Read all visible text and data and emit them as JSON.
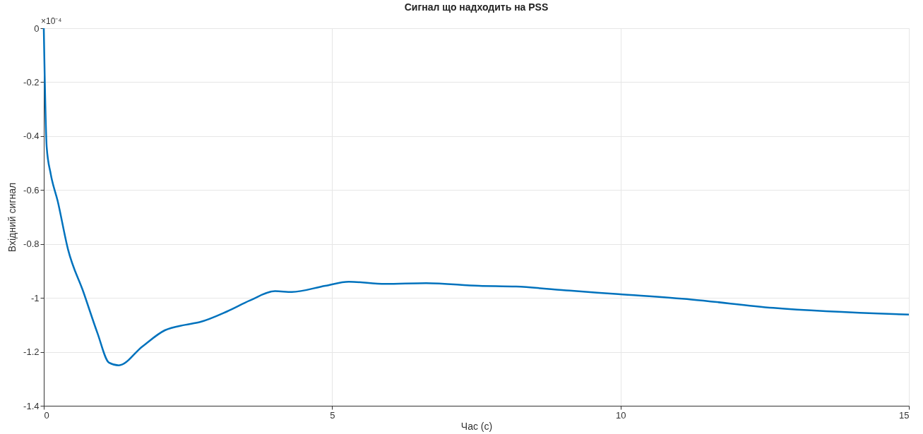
{
  "chart_data": {
    "type": "line",
    "title": "Сигнал що надходить на PSS",
    "xlabel": "Час (с)",
    "ylabel": "Вхідний сигнал",
    "annotations": [
      "×10⁻⁴"
    ],
    "x": [
      0,
      0.05,
      0.12,
      0.24,
      0.42,
      0.69,
      0.93,
      1.13,
      1.3,
      1.71,
      2.1,
      2.45,
      2.7,
      3.18,
      3.57,
      4.01,
      4.3,
      4.88,
      5.29,
      5.92,
      6.63,
      7.55,
      8.19,
      9.12,
      9.96,
      11.23,
      12.65,
      15
    ],
    "series": [
      {
        "color": "#0072bd",
        "values": [
          0,
          -0.44,
          -0.54,
          -0.64,
          -0.82,
          -0.98,
          -1.13,
          -1.24,
          -1.25,
          -1.18,
          -1.12,
          -1.1,
          -1.09,
          -1.05,
          -1.01,
          -0.975,
          -0.978,
          -0.955,
          -0.94,
          -0.948,
          -0.945,
          -0.955,
          -0.958,
          -0.973,
          -0.986,
          -1.006,
          -1.037,
          -1.062
        ]
      }
    ],
    "xlim": [
      0,
      15
    ],
    "xticks": [
      0,
      5,
      10,
      15
    ],
    "ylim": [
      -1.4,
      0
    ],
    "yticks": [
      -1.4,
      -1.2,
      -1,
      -0.8,
      -0.6,
      -0.4,
      -0.2,
      0
    ],
    "grid": true,
    "marker": "none",
    "line_style": "solid"
  }
}
